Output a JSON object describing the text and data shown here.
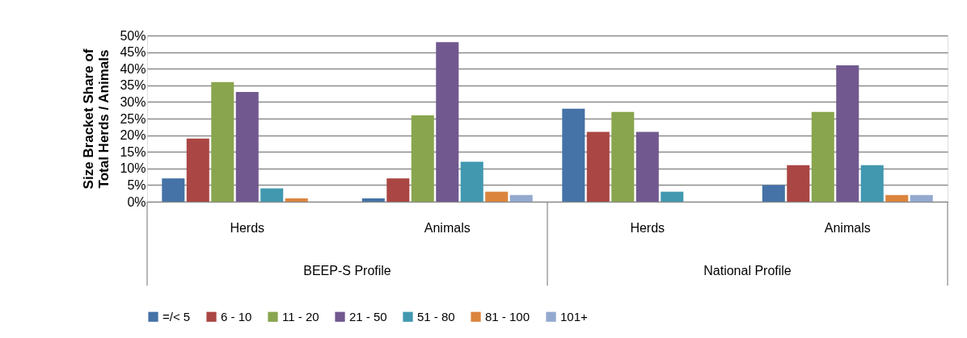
{
  "chart_data": {
    "type": "bar",
    "ylabel": "Size Bracket Share of Total Herds / Animals",
    "categories": [
      "Herds",
      "Animals",
      "Herds",
      "Animals"
    ],
    "annotations": [
      "BEEP-S Profile",
      "National Profile"
    ],
    "series": [
      {
        "name": "=/< 5",
        "color": "#4572a7",
        "values": [
          7,
          1,
          28,
          5
        ]
      },
      {
        "name": "6 - 10",
        "color": "#aa4643",
        "values": [
          19,
          7,
          21,
          11
        ]
      },
      {
        "name": "11 - 20",
        "color": "#89a54e",
        "values": [
          36,
          26,
          27,
          27
        ]
      },
      {
        "name": "21 - 50",
        "color": "#71588f",
        "values": [
          33,
          48,
          21,
          41
        ]
      },
      {
        "name": "51 - 80",
        "color": "#4198af",
        "values": [
          4,
          12,
          3,
          11
        ]
      },
      {
        "name": "81 - 100",
        "color": "#db843d",
        "values": [
          1,
          3,
          0,
          2
        ]
      },
      {
        "name": "101+",
        "color": "#93a9cf",
        "values": [
          0,
          2,
          0,
          2
        ]
      }
    ],
    "ylim": [
      0,
      50
    ],
    "yticks": [
      {
        "value": 0,
        "label": "0%"
      },
      {
        "value": 5,
        "label": "5%"
      },
      {
        "value": 10,
        "label": "10%"
      },
      {
        "value": 15,
        "label": "15%"
      },
      {
        "value": 20,
        "label": "20%"
      },
      {
        "value": 25,
        "label": "25%"
      },
      {
        "value": 30,
        "label": "30%"
      },
      {
        "value": 35,
        "label": "35%"
      },
      {
        "value": 40,
        "label": "40%"
      },
      {
        "value": 45,
        "label": "45%"
      },
      {
        "value": 50,
        "label": "50%"
      }
    ],
    "grid": "y",
    "legend": "bottom"
  }
}
